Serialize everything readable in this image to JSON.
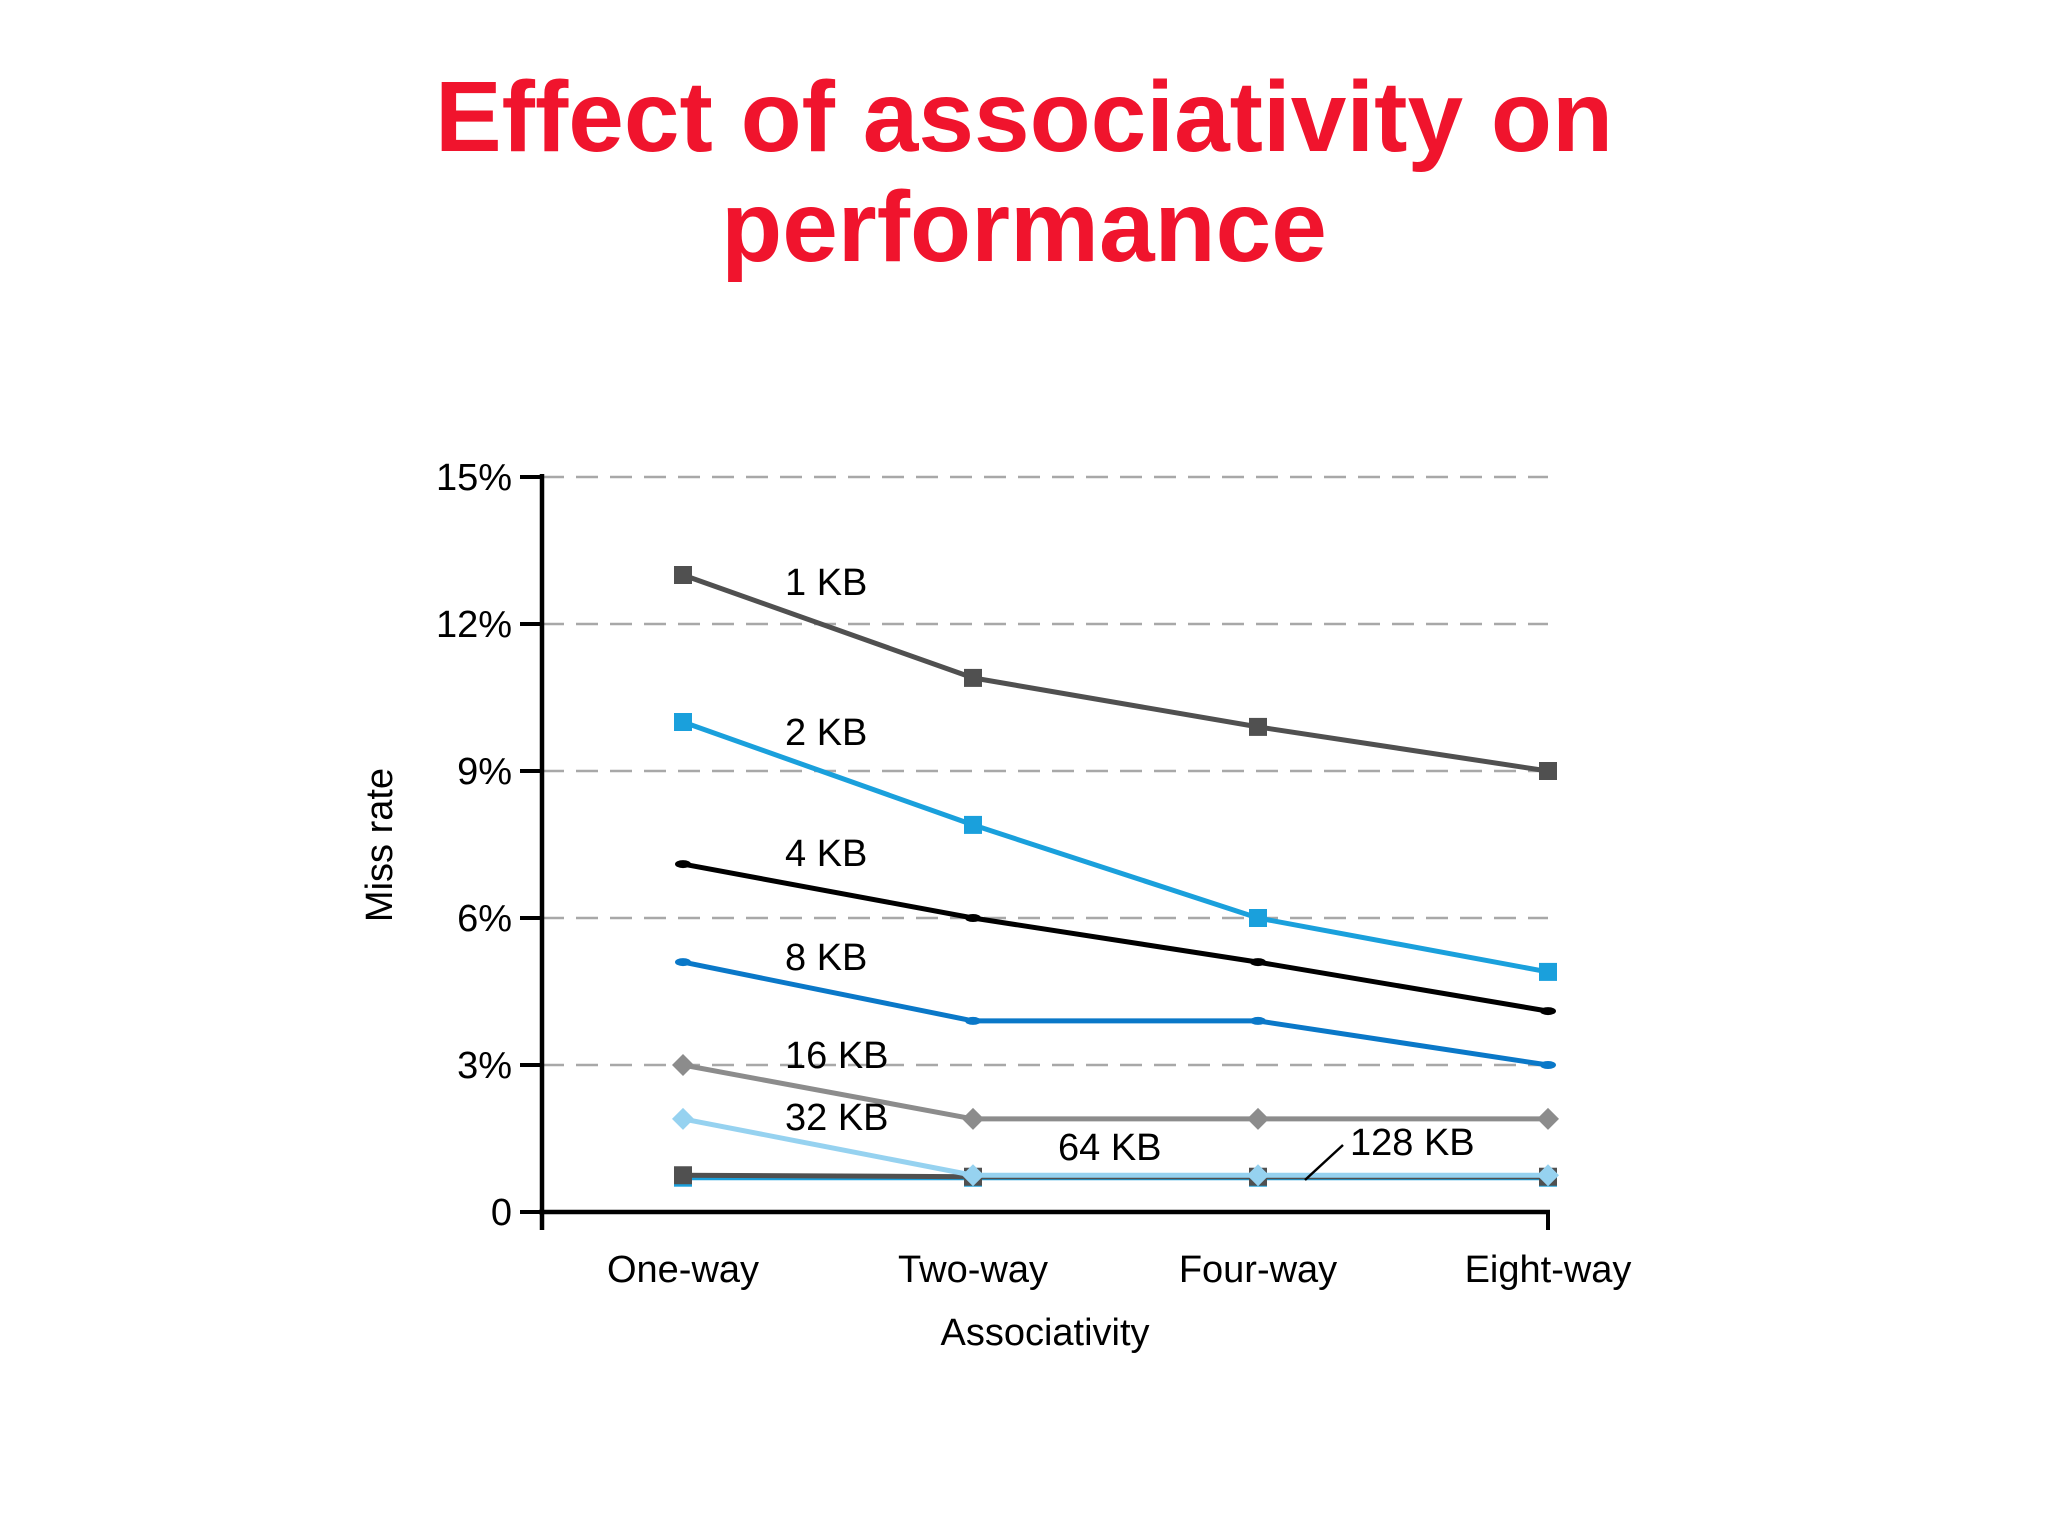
{
  "slide": {
    "title_line1": "Effect of associativity on",
    "title_line2": "performance"
  },
  "chart_data": {
    "type": "line",
    "xlabel": "Associativity",
    "ylabel": "Miss rate",
    "categories": [
      "One-way",
      "Two-way",
      "Four-way",
      "Eight-way"
    ],
    "ylim": [
      0,
      15
    ],
    "yticks": [
      {
        "value": 0,
        "label": "0"
      },
      {
        "value": 3,
        "label": "3%"
      },
      {
        "value": 6,
        "label": "6%"
      },
      {
        "value": 9,
        "label": "9%"
      },
      {
        "value": 12,
        "label": "12%"
      },
      {
        "value": 15,
        "label": "15%"
      }
    ],
    "grid": "horizontal-dashed",
    "series": [
      {
        "name": "1 KB",
        "values": [
          13.0,
          10.9,
          9.9,
          9.0
        ],
        "color": "#505050",
        "marker": "square"
      },
      {
        "name": "2 KB",
        "values": [
          10.0,
          7.9,
          6.0,
          4.9
        ],
        "color": "#1aa0dc",
        "marker": "square"
      },
      {
        "name": "4 KB",
        "values": [
          7.1,
          6.0,
          5.1,
          4.1
        ],
        "color": "#000000",
        "marker": "dot"
      },
      {
        "name": "8 KB",
        "values": [
          5.1,
          3.9,
          3.9,
          3.0
        ],
        "color": "#0a78c8",
        "marker": "dot"
      },
      {
        "name": "16 KB",
        "values": [
          3.0,
          1.9,
          1.9,
          1.9
        ],
        "color": "#8c8c8c",
        "marker": "diamond"
      },
      {
        "name": "32 KB",
        "values": [
          1.9,
          0.75,
          0.75,
          0.75
        ],
        "color": "#96d2f0",
        "marker": "diamond"
      },
      {
        "name": "64 KB",
        "values": [
          0.75,
          0.72,
          0.72,
          0.72
        ],
        "color": "#505050",
        "marker": "square"
      },
      {
        "name": "128 KB",
        "values": [
          0.7,
          0.7,
          0.7,
          0.7
        ],
        "color": "#1aa0dc",
        "marker": "square"
      }
    ]
  }
}
